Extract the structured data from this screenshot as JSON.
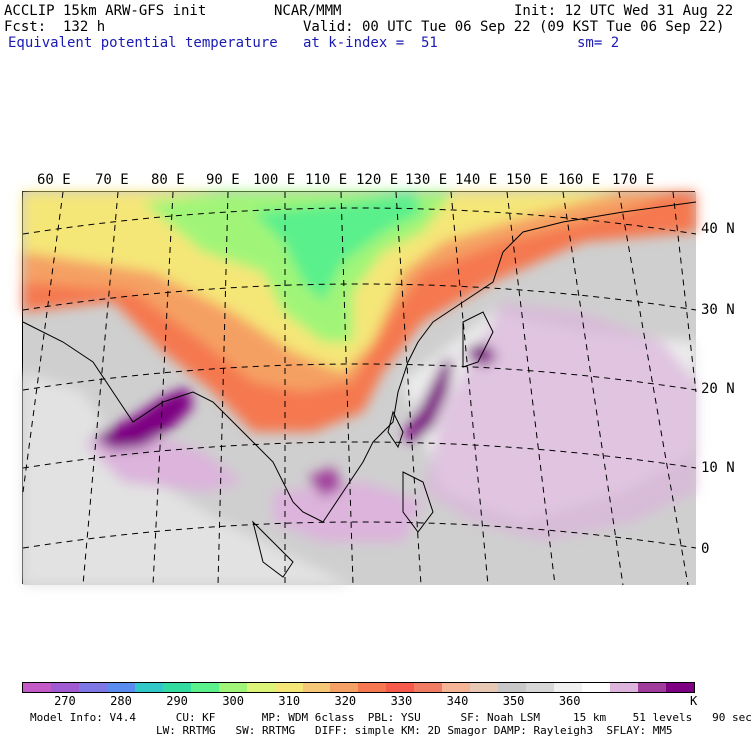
{
  "header": {
    "left1": "ACCLIP 15km ARW-GFS init",
    "left2": "Fcst:  132 h",
    "left3": "Equivalent potential temperature",
    "center": "NCAR/MMM",
    "init": "Init: 12 UTC Wed 31 Aug 22",
    "valid": "Valid: 00 UTC Tue 06 Sep 22 (09 KST Tue 06 Sep 22)",
    "level": "at k-index =  51",
    "smooth": "sm= 2"
  },
  "map": {
    "longitude_labels": [
      "60 E",
      "70 E",
      "80 E",
      "90 E",
      "100 E",
      "110 E",
      "120 E",
      "130 E",
      "140 E",
      "150 E",
      "160 E",
      "170 E"
    ],
    "latitude_labels": [
      "40 N",
      "30 N",
      "20 N",
      "10 N",
      "0"
    ]
  },
  "colorbar": {
    "colors": [
      "#c45ac8",
      "#a05ad2",
      "#7d78e6",
      "#5a8cf0",
      "#32c8c8",
      "#32dca0",
      "#5af08c",
      "#a0f578",
      "#dcf578",
      "#f5e678",
      "#f5c878",
      "#f5a064",
      "#f57850",
      "#f55a4b",
      "#f07c64",
      "#f5b496",
      "#e6c8b4",
      "#c8c8c8",
      "#d7d7d7",
      "#f0f0f0",
      "#ffffff",
      "#dcb4dc",
      "#a03c9b",
      "#7d0082"
    ],
    "labels": [
      "270",
      "280",
      "290",
      "300",
      "310",
      "320",
      "330",
      "340",
      "350",
      "360"
    ],
    "unit": "K"
  },
  "model_info": {
    "line1": "Model Info: V4.4      CU: KF       MP: WDM 6class  PBL: YSU      SF: Noah LSM     15 km    51 levels   90 sec",
    "line2": "LW: RRTMG   SW: RRTMG   DIFF: simple KM: 2D Smagor DAMP: Rayleigh3  SFLAY: MM5"
  }
}
